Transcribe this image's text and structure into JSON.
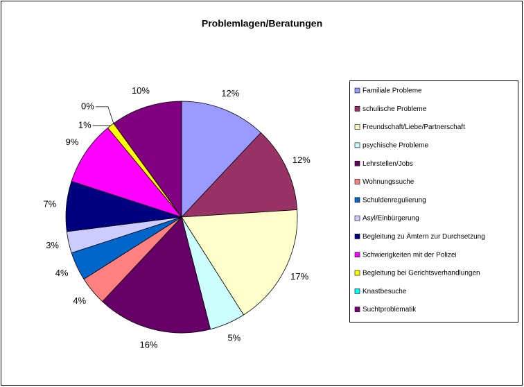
{
  "chart_data": {
    "type": "pie",
    "title": "Problemlagen/Beratungen",
    "categories": [
      "Familiale Probleme",
      "schulische Probleme",
      "Freundschaft/Liebe/Partnerschaft",
      "psychische Probleme",
      "Lehrstellen/Jobs",
      "Wohnungssuche",
      "Schuldenregulierung",
      "Asyl/Einbürgerung",
      "Begleitung zu Ämtern zur Durchsetzung",
      "Schwierigkeiten mit der Polizei",
      "Begleitung bei Gerichtsverhandlungen",
      "Knastbesuche",
      "Suchtproblematik"
    ],
    "values": [
      12,
      12,
      17,
      5,
      16,
      4,
      4,
      3,
      7,
      9,
      1,
      0,
      10
    ],
    "value_labels": [
      "12%",
      "12%",
      "17%",
      "5%",
      "16%",
      "4%",
      "4%",
      "3%",
      "7%",
      "9%",
      "1%",
      "0%",
      "10%"
    ],
    "colors": [
      "#9999ff",
      "#993366",
      "#ffffcc",
      "#ccffff",
      "#660066",
      "#ff8080",
      "#0066cc",
      "#ccccff",
      "#000080",
      "#ff00ff",
      "#ffff00",
      "#00ffff",
      "#800080"
    ],
    "legend": "right"
  }
}
